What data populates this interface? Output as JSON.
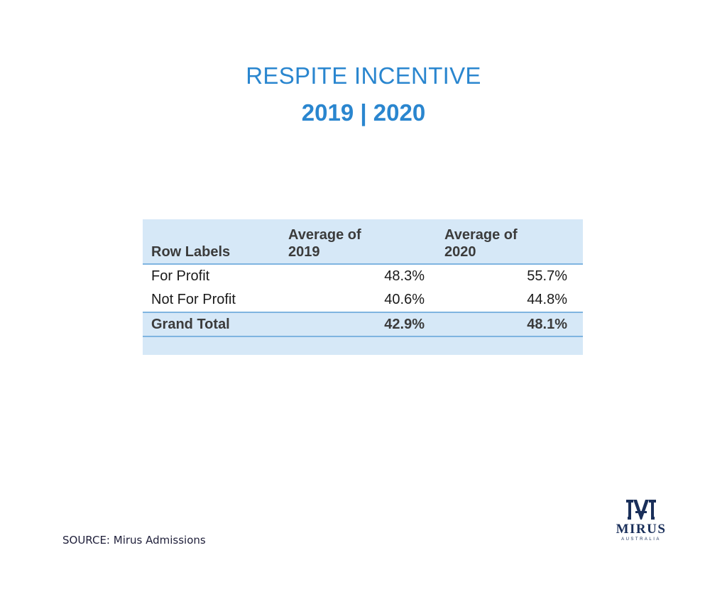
{
  "header": {
    "title": "RESPITE INCENTIVE",
    "subtitle": "2019 | 2020"
  },
  "table": {
    "columns": [
      {
        "line1": "",
        "line2": "Row Labels"
      },
      {
        "line1": "Average of",
        "line2": "2019"
      },
      {
        "line1": "Average of",
        "line2": "2020"
      }
    ],
    "rows": [
      {
        "label": "For Profit",
        "y2019": "48.3%",
        "y2020": "55.7%"
      },
      {
        "label": "Not For Profit",
        "y2019": "40.6%",
        "y2020": "44.8%"
      }
    ],
    "total": {
      "label": "Grand Total",
      "y2019": "42.9%",
      "y2020": "48.1%"
    }
  },
  "footer": {
    "source": "SOURCE: Mirus Admissions"
  },
  "logo": {
    "word": "MIRUS",
    "sub": "AUSTRALIA",
    "color": "#1a2f5a"
  },
  "colors": {
    "accent": "#2a86cf",
    "table_fill": "#d6e8f7",
    "table_rule": "#7fb4e0"
  }
}
